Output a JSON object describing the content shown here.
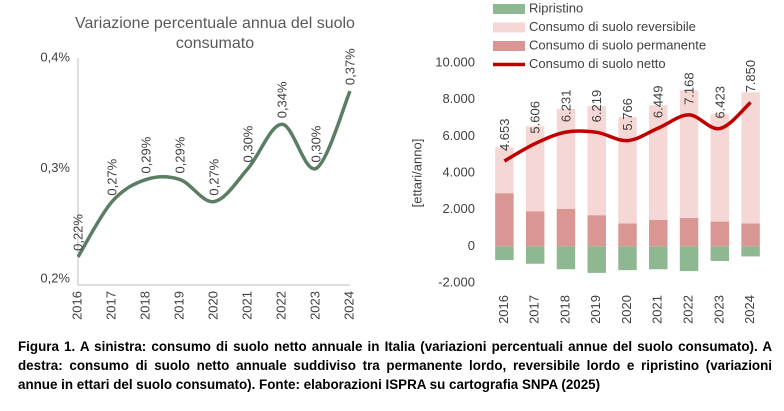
{
  "chart_data": [
    {
      "type": "line",
      "title": "Variazione percentuale annua del suolo consumato",
      "categories": [
        "2016",
        "2017",
        "2018",
        "2019",
        "2020",
        "2021",
        "2022",
        "2023",
        "2024"
      ],
      "values": [
        0.22,
        0.27,
        0.29,
        0.29,
        0.27,
        0.3,
        0.34,
        0.3,
        0.37
      ],
      "value_labels": [
        "0,22%",
        "0,27%",
        "0,29%",
        "0,29%",
        "0,27%",
        "0,30%",
        "0,34%",
        "0,30%",
        "0,37%"
      ],
      "color": "#5b7d63",
      "ylim": [
        0.2,
        0.4
      ],
      "yticks": [
        {
          "value": 0.2,
          "label": "0,2%"
        },
        {
          "value": 0.3,
          "label": "0,3%"
        },
        {
          "value": 0.4,
          "label": "0,4%"
        }
      ]
    },
    {
      "type": "bar",
      "y_label": "[ettari/anno]",
      "categories": [
        "2016",
        "2017",
        "2018",
        "2019",
        "2020",
        "2021",
        "2022",
        "2023",
        "2024"
      ],
      "series": [
        {
          "name": "Ripristino",
          "color": "#8db892",
          "values": [
            -750,
            -950,
            -1250,
            -1450,
            -1300,
            -1250,
            -1350,
            -800,
            -550
          ]
        },
        {
          "name": "Consumo di suolo reversibile",
          "color": "#f5d7d5",
          "values": [
            2500,
            4650,
            5450,
            5950,
            5800,
            6250,
            6950,
            5850,
            7150
          ]
        },
        {
          "name": "Consumo di suolo permanente",
          "color": "#d99693",
          "values": [
            2900,
            1900,
            2050,
            1700,
            1250,
            1450,
            1550,
            1350,
            1250
          ]
        },
        {
          "name": "Consumo di suolo netto",
          "type": "line",
          "color": "#c00000",
          "values": [
            4653,
            5606,
            6231,
            6219,
            5766,
            6449,
            7168,
            6423,
            7850
          ],
          "value_labels": [
            "4.653",
            "5.606",
            "6.231",
            "6.219",
            "5.766",
            "6.449",
            "7.168",
            "6.423",
            "7.850"
          ]
        }
      ],
      "ylim": [
        -2000,
        10000
      ],
      "yticks": [
        {
          "value": -2000,
          "label": "-2.000"
        },
        0,
        {
          "value": 2000,
          "label": "2.000"
        },
        {
          "value": 4000,
          "label": "4.000"
        },
        {
          "value": 6000,
          "label": "6.000"
        },
        {
          "value": 8000,
          "label": "8.000"
        },
        {
          "value": 10000,
          "label": "10.000"
        }
      ],
      "legend": "top-left"
    }
  ],
  "caption": "Figura 1. A sinistra: consumo di suolo netto annuale in Italia (variazioni percentuali annue del suolo consumato). A destra: consumo di suolo netto annuale suddiviso tra permanente lordo, reversibile lordo e ripristino (variazioni annue in ettari del suolo consumato). Fonte: elaborazioni ISPRA su cartografia SNPA (2025)"
}
